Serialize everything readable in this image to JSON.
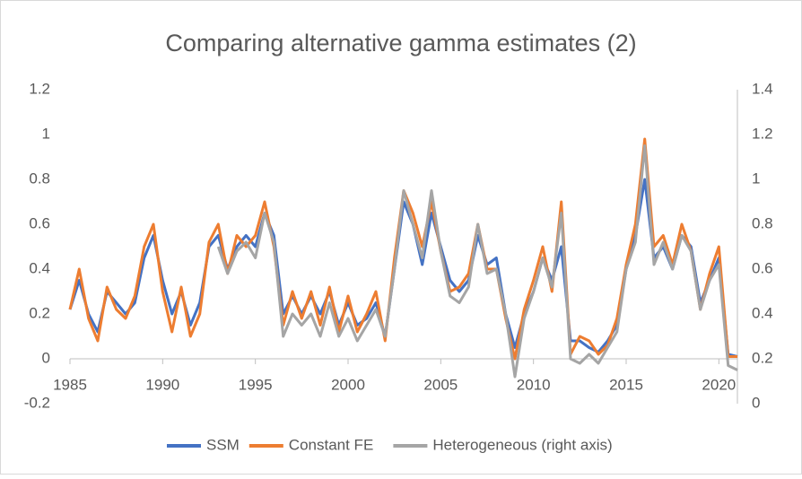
{
  "chart_data": {
    "type": "line",
    "title": "Comparing alternative gamma estimates (2)",
    "x": [
      1985,
      1985.5,
      1986,
      1986.5,
      1987,
      1987.5,
      1988,
      1988.5,
      1989,
      1989.5,
      1990,
      1990.5,
      1991,
      1991.5,
      1992,
      1992.5,
      1993,
      1993.5,
      1994,
      1994.5,
      1995,
      1995.5,
      1996,
      1996.5,
      1997,
      1997.5,
      1998,
      1998.5,
      1999,
      1999.5,
      2000,
      2000.5,
      2001,
      2001.5,
      2002,
      2002.5,
      2003,
      2003.5,
      2004,
      2004.5,
      2005,
      2005.5,
      2006,
      2006.5,
      2007,
      2007.5,
      2008,
      2008.5,
      2009,
      2009.5,
      2010,
      2010.5,
      2011,
      2011.5,
      2012,
      2012.5,
      2013,
      2013.5,
      2014,
      2014.5,
      2015,
      2015.5,
      2016,
      2016.5,
      2017,
      2017.5,
      2018,
      2018.5,
      2019,
      2019.5,
      2020,
      2020.5,
      2021
    ],
    "series": [
      {
        "name": "SSM",
        "color": "#4472c4",
        "axis": "y",
        "values": [
          0.22,
          0.35,
          0.2,
          0.12,
          0.3,
          0.25,
          0.2,
          0.25,
          0.45,
          0.55,
          0.35,
          0.2,
          0.3,
          0.15,
          0.25,
          0.5,
          0.55,
          0.4,
          0.5,
          0.55,
          0.5,
          0.65,
          0.55,
          0.2,
          0.28,
          0.2,
          0.28,
          0.2,
          0.3,
          0.15,
          0.25,
          0.15,
          0.18,
          0.25,
          0.1,
          0.4,
          0.7,
          0.6,
          0.42,
          0.65,
          0.5,
          0.35,
          0.3,
          0.35,
          0.55,
          0.42,
          0.45,
          0.2,
          0.05,
          0.2,
          0.3,
          0.45,
          0.35,
          0.5,
          0.08,
          0.08,
          0.05,
          0.03,
          0.08,
          0.15,
          0.4,
          0.55,
          0.8,
          0.45,
          0.5,
          0.4,
          0.55,
          0.5,
          0.25,
          0.35,
          0.45,
          0.02,
          0.01
        ]
      },
      {
        "name": "Constant FE",
        "color": "#ed7d31",
        "axis": "y",
        "values": [
          0.22,
          0.4,
          0.18,
          0.08,
          0.32,
          0.22,
          0.18,
          0.28,
          0.5,
          0.6,
          0.3,
          0.12,
          0.32,
          0.1,
          0.2,
          0.52,
          0.6,
          0.38,
          0.55,
          0.5,
          0.55,
          0.7,
          0.5,
          0.15,
          0.3,
          0.18,
          0.3,
          0.15,
          0.32,
          0.12,
          0.28,
          0.12,
          0.2,
          0.3,
          0.08,
          0.45,
          0.75,
          0.65,
          0.5,
          0.7,
          0.48,
          0.3,
          0.32,
          0.38,
          0.6,
          0.4,
          0.4,
          0.18,
          0.0,
          0.22,
          0.35,
          0.5,
          0.3,
          0.7,
          0.02,
          0.1,
          0.08,
          0.02,
          0.06,
          0.18,
          0.42,
          0.6,
          0.98,
          0.5,
          0.55,
          0.42,
          0.6,
          0.48,
          0.22,
          0.38,
          0.5,
          0.01,
          0.01
        ]
      },
      {
        "name": "Heterogeneous (right axis)",
        "color": "#a5a5a5",
        "axis": "y2",
        "values": [
          null,
          null,
          null,
          null,
          null,
          null,
          null,
          null,
          null,
          null,
          null,
          null,
          null,
          null,
          null,
          null,
          0.7,
          0.58,
          0.68,
          0.72,
          0.65,
          0.85,
          0.72,
          0.3,
          0.4,
          0.35,
          0.4,
          0.3,
          0.45,
          0.3,
          0.38,
          0.28,
          0.35,
          0.42,
          0.3,
          0.6,
          0.95,
          0.8,
          0.65,
          0.95,
          0.68,
          0.48,
          0.45,
          0.52,
          0.8,
          0.58,
          0.6,
          0.4,
          0.12,
          0.38,
          0.5,
          0.65,
          0.52,
          0.85,
          0.2,
          0.18,
          0.22,
          0.18,
          0.25,
          0.32,
          0.6,
          0.72,
          1.15,
          0.62,
          0.72,
          0.6,
          0.75,
          0.68,
          0.42,
          0.55,
          0.62,
          0.17,
          0.15
        ]
      }
    ],
    "xlim": [
      1985,
      2021
    ],
    "xticks": [
      1985,
      1990,
      1995,
      2000,
      2005,
      2010,
      2015,
      2020
    ],
    "ylim": [
      -0.2,
      1.2
    ],
    "yticks": [
      -0.2,
      0,
      0.2,
      0.4,
      0.6,
      0.8,
      1,
      1.2
    ],
    "y2lim": [
      0,
      1.4
    ],
    "y2ticks": [
      0,
      0.2,
      0.4,
      0.6,
      0.8,
      1,
      1.2,
      1.4
    ],
    "legend": "bottom"
  }
}
